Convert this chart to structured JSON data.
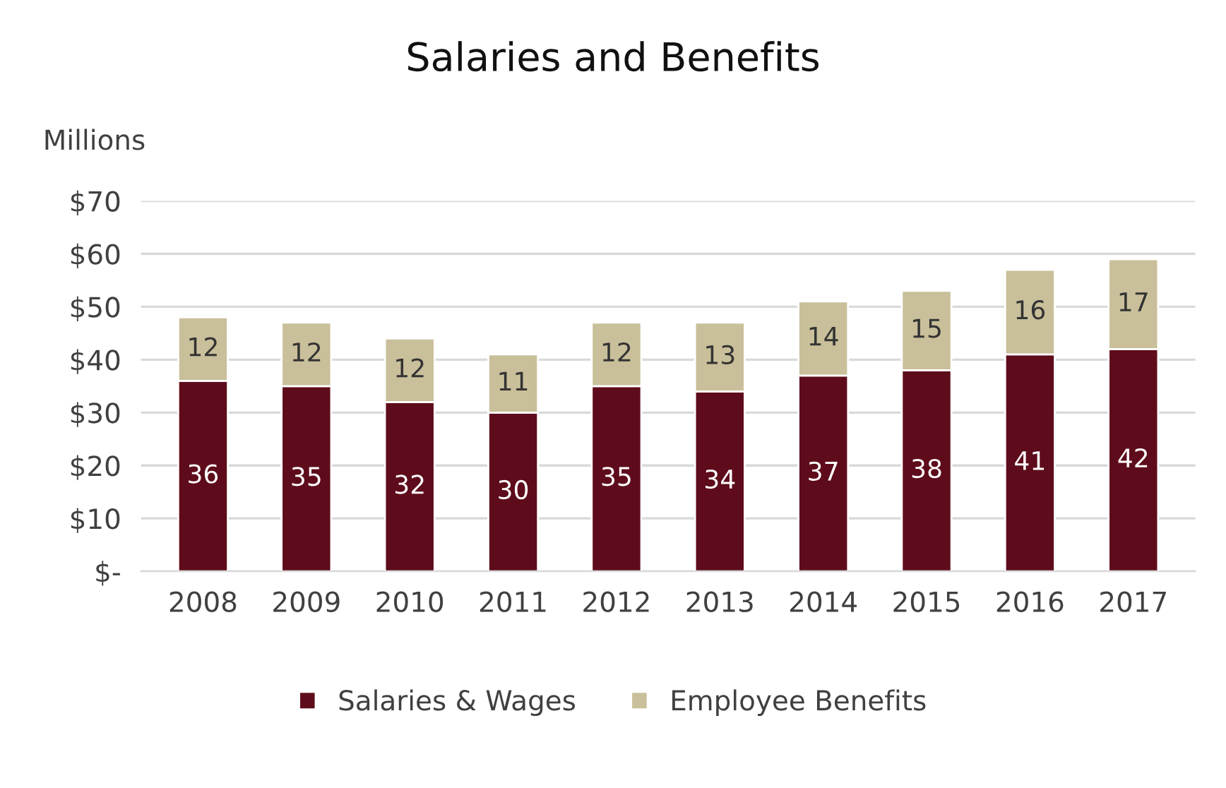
{
  "chart_data": {
    "type": "bar",
    "title": "Salaries and Benefits",
    "ylabel": "Millions",
    "categories": [
      "2008",
      "2009",
      "2010",
      "2011",
      "2012",
      "2013",
      "2014",
      "2015",
      "2016",
      "2017"
    ],
    "series": [
      {
        "name": "Salaries & Wages",
        "color": "#5e0c1b",
        "values": [
          36,
          35,
          32,
          30,
          35,
          34,
          37,
          38,
          41,
          42
        ]
      },
      {
        "name": "Employee Benefits",
        "color": "#c9bf9a",
        "values": [
          12,
          12,
          12,
          11,
          12,
          13,
          14,
          15,
          16,
          17
        ]
      }
    ],
    "stacked": true,
    "data_labels": true,
    "ylim": [
      0,
      70
    ],
    "yticks": [
      {
        "value": 0,
        "label": "$-"
      },
      {
        "value": 10,
        "label": "$10"
      },
      {
        "value": 20,
        "label": "$20"
      },
      {
        "value": 30,
        "label": "$30"
      },
      {
        "value": 40,
        "label": "$40"
      },
      {
        "value": 50,
        "label": "$50"
      },
      {
        "value": 60,
        "label": "$60"
      },
      {
        "value": 70,
        "label": "$70"
      }
    ],
    "grid": "y",
    "legend": "bottom"
  }
}
